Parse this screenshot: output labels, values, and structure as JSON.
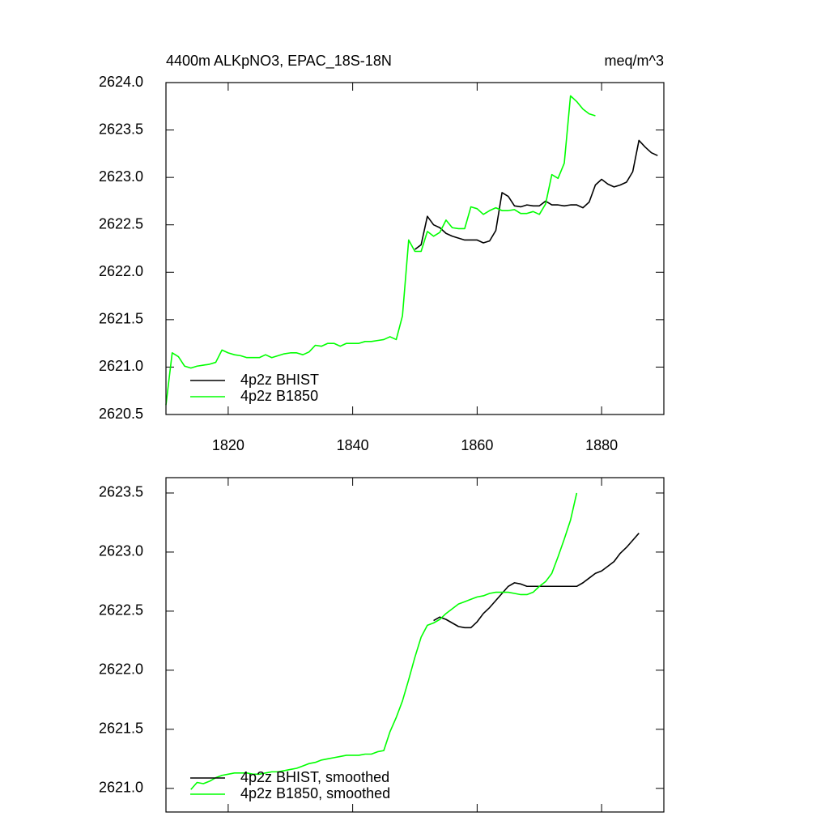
{
  "chart_data": [
    {
      "type": "line",
      "title": "4400m ALKpNO3, EPAC_18S-18N",
      "units": "meq/m^3",
      "xlim": [
        1810,
        1890
      ],
      "xticks": [
        1820,
        1840,
        1860,
        1880
      ],
      "ylim": [
        2620.5,
        2624.0
      ],
      "yticks": [
        {
          "value": 2620.5,
          "label": "2620.5"
        },
        {
          "value": 2621,
          "label": "2621.0"
        },
        2621.5,
        {
          "value": 2622,
          "label": "2622.0"
        },
        2622.5,
        {
          "value": 2623,
          "label": "2623.0"
        },
        2623.5,
        {
          "value": 2624,
          "label": "2624.0"
        }
      ],
      "legend": "lower left",
      "series": [
        {
          "name": "4p2z BHIST",
          "color": "#000000",
          "x": [
            1850,
            1851,
            1852,
            1853,
            1854,
            1855,
            1856,
            1857,
            1858,
            1859,
            1860,
            1861,
            1862,
            1863,
            1864,
            1865,
            1866,
            1867,
            1868,
            1869,
            1870,
            1871,
            1872,
            1873,
            1874,
            1875,
            1876,
            1877,
            1878,
            1879,
            1880,
            1881,
            1882,
            1883,
            1884,
            1885,
            1886,
            1887,
            1888,
            1889
          ],
          "values": [
            2622.24,
            2622.29,
            2622.59,
            2622.5,
            2622.47,
            2622.41,
            2622.38,
            2622.36,
            2622.34,
            2622.34,
            2622.34,
            2622.31,
            2622.33,
            2622.44,
            2622.84,
            2622.8,
            2622.7,
            2622.69,
            2622.71,
            2622.7,
            2622.7,
            2622.75,
            2622.71,
            2622.71,
            2622.7,
            2622.71,
            2622.71,
            2622.68,
            2622.74,
            2622.92,
            2622.98,
            2622.93,
            2622.9,
            2622.92,
            2622.95,
            2623.06,
            2623.39,
            2623.32,
            2623.26,
            2623.23
          ]
        },
        {
          "name": "4p2z B1850",
          "color": "#00ff00",
          "x": [
            1810,
            1811,
            1812,
            1813,
            1814,
            1815,
            1816,
            1817,
            1818,
            1819,
            1820,
            1821,
            1822,
            1823,
            1824,
            1825,
            1826,
            1827,
            1828,
            1829,
            1830,
            1831,
            1832,
            1833,
            1834,
            1835,
            1836,
            1837,
            1838,
            1839,
            1840,
            1841,
            1842,
            1843,
            1844,
            1845,
            1846,
            1847,
            1848,
            1849,
            1850,
            1851,
            1852,
            1853,
            1854,
            1855,
            1856,
            1857,
            1858,
            1859,
            1860,
            1861,
            1862,
            1863,
            1864,
            1865,
            1866,
            1867,
            1868,
            1869,
            1870,
            1871,
            1872,
            1873,
            1874,
            1875,
            1876,
            1877,
            1878,
            1879
          ],
          "values": [
            2620.6,
            2621.15,
            2621.11,
            2621.01,
            2620.99,
            2621.01,
            2621.02,
            2621.03,
            2621.05,
            2621.18,
            2621.15,
            2621.13,
            2621.12,
            2621.1,
            2621.1,
            2621.1,
            2621.13,
            2621.1,
            2621.12,
            2621.14,
            2621.15,
            2621.15,
            2621.13,
            2621.16,
            2621.23,
            2621.22,
            2621.25,
            2621.25,
            2621.22,
            2621.25,
            2621.25,
            2621.25,
            2621.27,
            2621.27,
            2621.28,
            2621.29,
            2621.32,
            2621.29,
            2621.54,
            2622.34,
            2622.22,
            2622.22,
            2622.43,
            2622.38,
            2622.42,
            2622.55,
            2622.47,
            2622.46,
            2622.46,
            2622.69,
            2622.67,
            2622.61,
            2622.65,
            2622.68,
            2622.65,
            2622.65,
            2622.66,
            2622.62,
            2622.62,
            2622.64,
            2622.61,
            2622.72,
            2623.03,
            2622.99,
            2623.15,
            2623.86,
            2623.8,
            2623.72,
            2623.67,
            2623.65
          ]
        }
      ]
    },
    {
      "type": "line",
      "xlim": [
        1810,
        1890
      ],
      "ylim": [
        2620.8,
        2623.63
      ],
      "yticks": [
        {
          "value": 2621,
          "label": "2621.0"
        },
        2621.5,
        {
          "value": 2622,
          "label": "2622.0"
        },
        2622.5,
        {
          "value": 2623,
          "label": "2623.0"
        },
        2623.5
      ],
      "legend": "lower left",
      "series": [
        {
          "name": "4p2z BHIST, smoothed",
          "color": "#000000",
          "x": [
            1853,
            1854,
            1855,
            1856,
            1857,
            1858,
            1859,
            1860,
            1861,
            1862,
            1863,
            1864,
            1865,
            1866,
            1867,
            1868,
            1869,
            1870,
            1871,
            1872,
            1873,
            1874,
            1875,
            1876,
            1877,
            1878,
            1879,
            1880,
            1881,
            1882,
            1883,
            1884,
            1885,
            1886
          ],
          "values": [
            2622.42,
            2622.45,
            2622.43,
            2622.4,
            2622.37,
            2622.36,
            2622.36,
            2622.41,
            2622.48,
            2622.53,
            2622.59,
            2622.65,
            2622.71,
            2622.74,
            2622.73,
            2622.71,
            2622.71,
            2622.71,
            2622.71,
            2622.71,
            2622.71,
            2622.71,
            2622.71,
            2622.71,
            2622.74,
            2622.78,
            2622.82,
            2622.84,
            2622.88,
            2622.92,
            2622.99,
            2623.04,
            2623.1,
            2623.16
          ]
        },
        {
          "name": "4p2z B1850, smoothed",
          "color": "#00ff00",
          "x": [
            1814,
            1815,
            1816,
            1817,
            1818,
            1819,
            1820,
            1821,
            1822,
            1823,
            1824,
            1825,
            1826,
            1827,
            1828,
            1829,
            1830,
            1831,
            1832,
            1833,
            1834,
            1835,
            1836,
            1837,
            1838,
            1839,
            1840,
            1841,
            1842,
            1843,
            1844,
            1845,
            1846,
            1847,
            1848,
            1849,
            1850,
            1851,
            1852,
            1853,
            1854,
            1855,
            1856,
            1857,
            1858,
            1859,
            1860,
            1861,
            1862,
            1863,
            1864,
            1865,
            1866,
            1867,
            1868,
            1869,
            1870,
            1871,
            1872,
            1873,
            1874,
            1875,
            1876
          ],
          "values": [
            2620.99,
            2621.05,
            2621.04,
            2621.06,
            2621.09,
            2621.11,
            2621.12,
            2621.13,
            2621.13,
            2621.13,
            2621.12,
            2621.12,
            2621.13,
            2621.14,
            2621.14,
            2621.15,
            2621.16,
            2621.17,
            2621.19,
            2621.21,
            2621.22,
            2621.24,
            2621.25,
            2621.26,
            2621.27,
            2621.28,
            2621.28,
            2621.28,
            2621.29,
            2621.29,
            2621.31,
            2621.32,
            2621.48,
            2621.6,
            2621.74,
            2621.92,
            2622.11,
            2622.28,
            2622.38,
            2622.4,
            2622.43,
            2622.48,
            2622.52,
            2622.56,
            2622.58,
            2622.6,
            2622.62,
            2622.63,
            2622.65,
            2622.66,
            2622.66,
            2622.66,
            2622.65,
            2622.64,
            2622.64,
            2622.66,
            2622.71,
            2622.75,
            2622.82,
            2622.96,
            2623.11,
            2623.27,
            2623.5
          ]
        }
      ]
    }
  ]
}
